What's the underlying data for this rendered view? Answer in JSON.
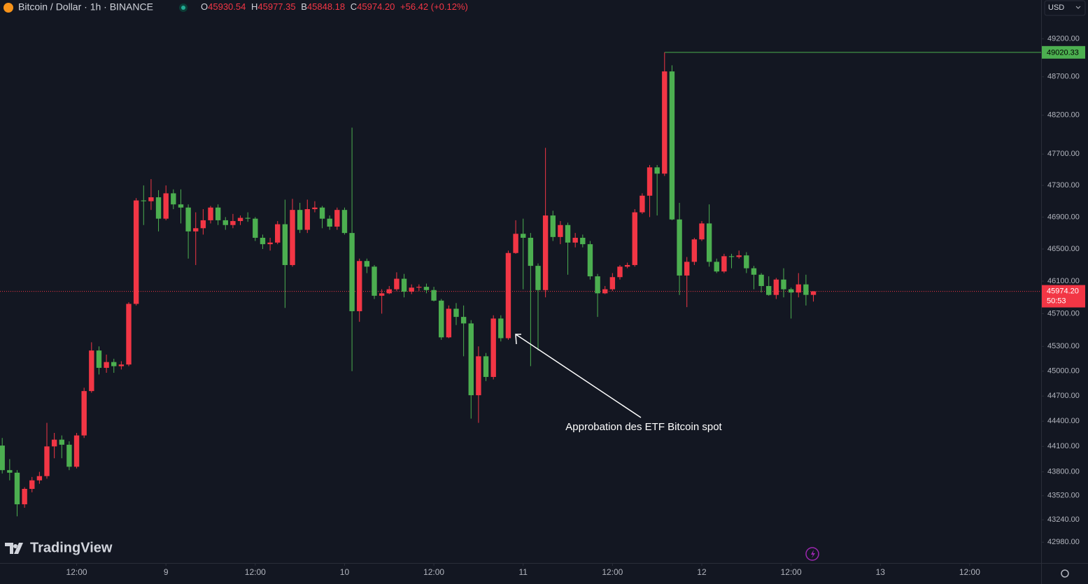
{
  "header": {
    "symbol": "Bitcoin / Dollar · 1h · BINANCE",
    "o": "O",
    "h": "H",
    "l": "B",
    "c": "C",
    "change": "+56.42 (+0.12%)",
    "currency": "USD",
    "brand": "TradingView",
    "countdown": "50:53"
  },
  "chart_data": {
    "type": "candlestick",
    "log_y": true,
    "up_color": "#f23645",
    "down_color": "#4caf50",
    "annotation": "Approbation des ETF Bitcoin spot",
    "price_label": {
      "value": 45974.2,
      "label": "45974.20"
    },
    "xlim": [
      -0.3,
      139.6
    ],
    "xticks": [
      {
        "value": 10,
        "label": "12:00"
      },
      {
        "value": 22,
        "label": "9"
      },
      {
        "value": 34,
        "label": "12:00"
      },
      {
        "value": 46,
        "label": "10"
      },
      {
        "value": 58,
        "label": "12:00"
      },
      {
        "value": 70,
        "label": "11"
      },
      {
        "value": 82,
        "label": "12:00"
      },
      {
        "value": 94,
        "label": "12"
      },
      {
        "value": 106,
        "label": "12:00"
      },
      {
        "value": 118,
        "label": "13"
      },
      {
        "value": 130,
        "label": "12:00"
      }
    ],
    "ylim": [
      42741,
      49714
    ],
    "yticks": [
      {
        "value": 49200,
        "label": "49200.00"
      },
      {
        "value": 48700,
        "label": "48700.00"
      },
      {
        "value": 48200,
        "label": "48200.00"
      },
      {
        "value": 47700,
        "label": "47700.00"
      },
      {
        "value": 47300,
        "label": "47300.00"
      },
      {
        "value": 46900,
        "label": "46900.00"
      },
      {
        "value": 46500,
        "label": "46500.00"
      },
      {
        "value": 46100,
        "label": "46100.00"
      },
      {
        "value": 45700,
        "label": "45700.00"
      },
      {
        "value": 45300,
        "label": "45300.00"
      },
      {
        "value": 45000,
        "label": "45000.00"
      },
      {
        "value": 44700,
        "label": "44700.00"
      },
      {
        "value": 44400,
        "label": "44400.00"
      },
      {
        "value": 44100,
        "label": "44100.00"
      },
      {
        "value": 43800,
        "label": "43800.00"
      },
      {
        "value": 43520,
        "label": "43520.00"
      },
      {
        "value": 43240,
        "label": "43240.00"
      },
      {
        "value": 42980,
        "label": "42980.00"
      }
    ],
    "open": [
      44110,
      43820,
      43790,
      43420,
      43600,
      43700,
      43750,
      44100,
      44180,
      44120,
      43860,
      44230,
      44760,
      45250,
      45040,
      45110,
      45060,
      45080,
      45820,
      47110,
      47100,
      47150,
      46880,
      47200,
      47060,
      47020,
      46720,
      46760,
      46860,
      47020,
      46860,
      46800,
      46850,
      46890,
      46880,
      46640,
      46560,
      46580,
      46810,
      46300,
      46990,
      46740,
      47000,
      47020,
      46880,
      46780,
      46990,
      46700,
      45730,
      46350,
      46280,
      45920,
      45950,
      46000,
      46130,
      45970,
      46020,
      46030,
      45990,
      45860,
      45410,
      45760,
      45660,
      45580,
      44710,
      45180,
      44930,
      45640,
      45400,
      46450,
      46690,
      46640,
      46290,
      45990,
      46920,
      46650,
      46800,
      46580,
      46640,
      46560,
      46160,
      45950,
      46000,
      46150,
      46280,
      46300,
      46960,
      47170,
      47530,
      47450,
      48770,
      46870,
      46170,
      46340,
      46620,
      46820,
      46340,
      46220,
      46410,
      46400,
      46420,
      46260,
      46180,
      46040,
      45930,
      46120,
      46000,
      45960,
      46060,
      45930.54
    ],
    "high": [
      44200,
      43950,
      43820,
      43620,
      43740,
      43800,
      44380,
      44260,
      44230,
      44160,
      44260,
      44800,
      45350,
      45300,
      45200,
      45150,
      45120,
      45840,
      47140,
      47300,
      47380,
      47240,
      47300,
      47250,
      47250,
      47060,
      46960,
      47000,
      47040,
      47060,
      46900,
      46940,
      46920,
      46960,
      46900,
      46680,
      46640,
      46850,
      47120,
      47130,
      47080,
      47120,
      47100,
      47040,
      46920,
      47020,
      47020,
      48040,
      46380,
      46380,
      46300,
      46000,
      46040,
      46210,
      46190,
      46060,
      46060,
      46070,
      46030,
      45880,
      45800,
      45830,
      45800,
      45620,
      45300,
      45220,
      45680,
      45680,
      46480,
      46860,
      46880,
      46700,
      46320,
      47780,
      46980,
      46850,
      46830,
      46700,
      46680,
      46600,
      46190,
      46040,
      46200,
      46300,
      46330,
      47000,
      47200,
      47560,
      47560,
      49020.33,
      48850,
      47080,
      46400,
      46640,
      46850,
      47060,
      46380,
      46440,
      46440,
      46480,
      46460,
      46290,
      46200,
      46160,
      46140,
      46260,
      46020,
      46200,
      46180,
      45977.35
    ],
    "low": [
      43780,
      43700,
      43280,
      43380,
      43560,
      43660,
      43720,
      43960,
      43960,
      43820,
      43840,
      44200,
      44740,
      44960,
      44980,
      44980,
      45020,
      45060,
      45800,
      46800,
      46990,
      46720,
      46860,
      47000,
      46820,
      46380,
      46300,
      46680,
      46820,
      46800,
      46740,
      46760,
      46800,
      46840,
      46600,
      46500,
      46480,
      46560,
      45770,
      46280,
      46700,
      46700,
      46960,
      46760,
      46740,
      46740,
      46680,
      45000,
      45600,
      46200,
      45880,
      45700,
      45940,
      45980,
      45900,
      45940,
      45980,
      45950,
      45850,
      45380,
      45400,
      45560,
      45180,
      44430,
      44380,
      44880,
      44900,
      45360,
      45380,
      46440,
      46000,
      45060,
      45250,
      45900,
      46600,
      46560,
      46180,
      46520,
      46520,
      46120,
      45660,
      45940,
      45980,
      46120,
      46260,
      46280,
      46940,
      46900,
      46920,
      47420,
      46860,
      45930,
      45780,
      46300,
      46600,
      46280,
      46200,
      46200,
      46260,
      46380,
      46200,
      46000,
      45960,
      45920,
      45880,
      45900,
      45640,
      45900,
      45800,
      45848.18
    ],
    "close": [
      43820,
      43790,
      43420,
      43600,
      43700,
      43750,
      44100,
      44180,
      44120,
      43860,
      44230,
      44760,
      45250,
      45040,
      45110,
      45060,
      45080,
      45820,
      47110,
      47100,
      47150,
      46880,
      47200,
      47060,
      47020,
      46720,
      46760,
      46860,
      47020,
      46860,
      46800,
      46850,
      46890,
      46880,
      46640,
      46560,
      46580,
      46810,
      46300,
      46990,
      46740,
      47000,
      47020,
      46880,
      46780,
      46990,
      46700,
      45730,
      46350,
      46280,
      45920,
      45950,
      46000,
      46130,
      45970,
      46020,
      46030,
      45990,
      45860,
      45410,
      45760,
      45660,
      45580,
      44710,
      45180,
      44930,
      45640,
      45400,
      46450,
      46690,
      46640,
      46290,
      45990,
      46920,
      46650,
      46800,
      46580,
      46640,
      46560,
      46160,
      45950,
      46000,
      46150,
      46280,
      46300,
      46960,
      47170,
      47530,
      47450,
      48770,
      46870,
      46170,
      46340,
      46620,
      46820,
      46340,
      46220,
      46410,
      46400,
      46420,
      46260,
      46180,
      46040,
      45930,
      46120,
      46000,
      45960,
      46060,
      45930.54,
      45974.2
    ]
  }
}
